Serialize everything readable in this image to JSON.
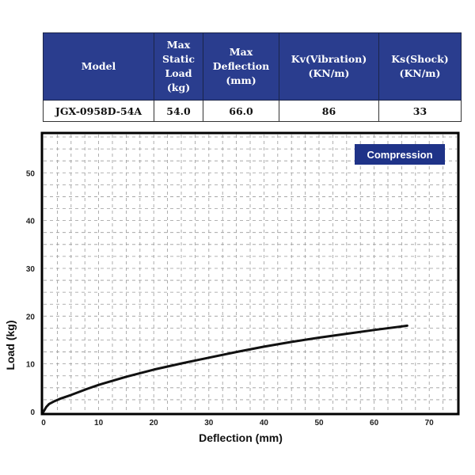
{
  "spec_table": {
    "headers": [
      "Model",
      "Max\nStatic\nLoad\n(kg)",
      "Max\nDeflection\n(mm)",
      "Kv(Vibration)\n(KN/m)",
      "Ks(Shock)\n(KN/m)"
    ],
    "row": [
      "JGX-0958D-54A",
      "54.0",
      "66.0",
      "86",
      "33"
    ]
  },
  "chart_data": {
    "type": "line",
    "legend": "Compression",
    "xlabel": "Deflection (mm)",
    "ylabel": "Load (kg)",
    "xlim": [
      0,
      75
    ],
    "ylim": [
      0,
      58
    ],
    "xticks": [
      0,
      10,
      20,
      30,
      40,
      50,
      60,
      70
    ],
    "yticks": [
      0,
      10,
      20,
      30,
      40,
      50
    ],
    "grid": true,
    "series": [
      {
        "x": [
          0,
          0.5,
          1,
          2,
          3,
          5,
          8,
          10,
          15,
          20,
          25,
          30,
          35,
          40,
          45,
          50,
          55,
          60,
          66
        ],
        "y": [
          0,
          1.0,
          1.6,
          2.2,
          2.7,
          3.5,
          4.8,
          5.6,
          7.3,
          8.8,
          10.1,
          11.3,
          12.5,
          13.6,
          14.6,
          15.5,
          16.3,
          17.1,
          18.0
        ]
      }
    ],
    "colors": {
      "line": "#111111",
      "legend_bg": "#1f3388",
      "legend_text": "#ffffff",
      "grid": "#9a9a9a"
    }
  }
}
